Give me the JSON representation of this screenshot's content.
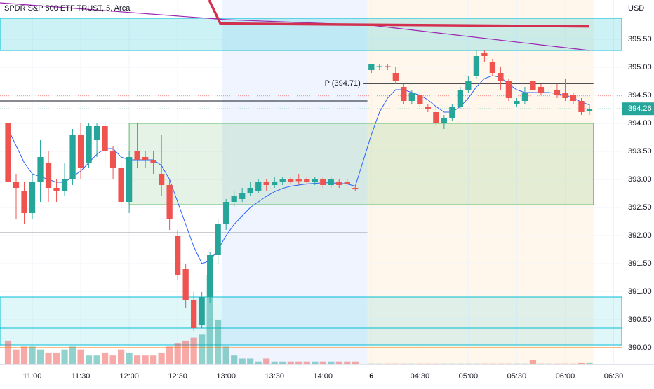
{
  "chart_data": {
    "type": "candlestick",
    "title": "SPDR S&P 500 ETF TRUST, 5, Arca",
    "currency": "USD",
    "xlim": [
      0,
      77
    ],
    "ylim": [
      389.7,
      396.2
    ],
    "xticks": [
      {
        "value": 4,
        "label": "11:00"
      },
      {
        "value": 10,
        "label": "11:30"
      },
      {
        "value": 16,
        "label": "12:00"
      },
      {
        "value": 22,
        "label": "12:30"
      },
      {
        "value": 28,
        "label": "13:00"
      },
      {
        "value": 34,
        "label": "13:30"
      },
      {
        "value": 40,
        "label": "14:00"
      },
      {
        "value": 46,
        "label": "6"
      },
      {
        "value": 52,
        "label": "04:30"
      },
      {
        "value": 58,
        "label": "05:00"
      },
      {
        "value": 64,
        "label": "05:30"
      },
      {
        "value": 70,
        "label": "06:00"
      },
      {
        "value": 76,
        "label": "06:30"
      }
    ],
    "yticks": [
      {
        "value": 390,
        "label": "390.00"
      },
      {
        "value": 390.5,
        "label": "390.50"
      },
      {
        "value": 391,
        "label": "391.00"
      },
      {
        "value": 391.5,
        "label": "391.50"
      },
      {
        "value": 392,
        "label": "392.00"
      },
      {
        "value": 392.5,
        "label": "392.50"
      },
      {
        "value": 393,
        "label": "393.00"
      },
      {
        "value": 393.5,
        "label": "393.50"
      },
      {
        "value": 394,
        "label": "394.00"
      },
      {
        "value": 394.5,
        "label": "394.50"
      },
      {
        "value": 395,
        "label": "395.00"
      },
      {
        "value": 395.5,
        "label": "395.50"
      }
    ],
    "grid": true,
    "up_color": "#26a69a",
    "down_color": "#ef5350",
    "x": [
      1,
      2,
      3,
      4,
      5,
      6,
      7,
      8,
      9,
      10,
      11,
      12,
      13,
      14,
      15,
      16,
      17,
      18,
      19,
      20,
      21,
      22,
      23,
      24,
      25,
      26,
      27,
      28,
      29,
      30,
      31,
      32,
      33,
      34,
      35,
      36,
      37,
      38,
      39,
      40,
      41,
      42,
      43,
      44,
      46,
      47,
      48,
      49,
      50,
      51,
      52,
      53,
      54,
      55,
      56,
      57,
      58,
      59,
      60,
      61,
      62,
      63,
      64,
      65,
      66,
      67,
      68,
      69,
      70,
      71,
      72,
      73
    ],
    "open": [
      394.0,
      392.95,
      392.8,
      392.4,
      392.95,
      393.3,
      392.85,
      392.8,
      393.0,
      393.8,
      393.3,
      393.7,
      393.95,
      393.5,
      393.2,
      392.6,
      393.5,
      393.4,
      393.35,
      393.1,
      392.9,
      392.0,
      391.4,
      390.85,
      390.4,
      390.9,
      391.65,
      392.2,
      392.6,
      392.65,
      392.75,
      392.8,
      392.95,
      392.9,
      392.95,
      393.0,
      393.0,
      393.0,
      392.95,
      393.0,
      392.9,
      392.95,
      392.95,
      392.85,
      394.95,
      395.0,
      395.02,
      394.9,
      394.65,
      394.4,
      394.5,
      394.3,
      394.2,
      394.0,
      394.1,
      394.3,
      394.6,
      394.85,
      395.25,
      395.1,
      394.9,
      394.75,
      394.35,
      394.4,
      394.75,
      394.65,
      394.6,
      394.6,
      394.55,
      394.5,
      394.4,
      394.22
    ],
    "high": [
      394.4,
      393.1,
      392.95,
      393.1,
      393.7,
      393.5,
      393.0,
      393.3,
      393.9,
      394.0,
      394.0,
      394.0,
      394.05,
      393.6,
      393.3,
      393.5,
      394.0,
      393.5,
      393.5,
      393.8,
      393.0,
      392.1,
      391.5,
      391.0,
      391.0,
      391.7,
      392.3,
      392.65,
      392.8,
      392.85,
      392.95,
      393.0,
      393.0,
      393.05,
      393.05,
      393.05,
      393.1,
      393.05,
      393.05,
      393.05,
      393.05,
      393.0,
      393.0,
      392.9,
      395.05,
      395.05,
      395.05,
      395.0,
      394.7,
      394.6,
      394.55,
      394.35,
      394.3,
      394.15,
      394.35,
      394.65,
      394.85,
      395.3,
      395.3,
      395.15,
      395.0,
      394.8,
      394.45,
      394.65,
      394.8,
      394.7,
      394.65,
      394.7,
      394.8,
      394.55,
      394.45,
      394.35
    ],
    "low": [
      392.8,
      392.3,
      392.2,
      392.3,
      392.6,
      392.6,
      392.6,
      392.7,
      392.9,
      393.0,
      393.2,
      393.4,
      393.3,
      393.0,
      392.5,
      392.4,
      393.2,
      393.2,
      393.1,
      392.7,
      392.1,
      391.2,
      390.7,
      390.3,
      390.35,
      390.8,
      391.5,
      392.1,
      392.5,
      392.6,
      392.7,
      392.75,
      392.8,
      392.85,
      392.9,
      392.9,
      392.9,
      392.9,
      392.9,
      392.85,
      392.85,
      392.85,
      392.9,
      392.8,
      394.9,
      394.95,
      394.95,
      394.7,
      394.35,
      394.35,
      394.3,
      394.2,
      393.95,
      393.9,
      394.05,
      394.25,
      394.55,
      394.8,
      395.1,
      394.85,
      394.6,
      394.4,
      394.3,
      394.35,
      394.55,
      394.5,
      394.55,
      394.45,
      394.4,
      394.35,
      394.15,
      394.15
    ],
    "close": [
      392.95,
      392.85,
      392.4,
      392.95,
      393.4,
      392.85,
      392.8,
      393.0,
      393.8,
      393.2,
      393.95,
      393.95,
      393.5,
      393.2,
      392.6,
      393.4,
      393.35,
      393.35,
      393.3,
      392.9,
      392.3,
      391.3,
      390.85,
      390.35,
      390.9,
      391.65,
      392.2,
      392.6,
      392.7,
      392.75,
      392.85,
      392.95,
      392.9,
      392.95,
      393.0,
      392.95,
      392.97,
      392.95,
      393.0,
      392.9,
      393.0,
      392.9,
      392.92,
      392.83,
      395.05,
      395.02,
      395.0,
      394.75,
      394.4,
      394.55,
      394.35,
      394.25,
      394.0,
      394.1,
      394.3,
      394.6,
      394.75,
      395.2,
      395.2,
      394.9,
      394.75,
      394.45,
      394.4,
      394.55,
      394.6,
      394.55,
      394.6,
      394.5,
      394.45,
      394.4,
      394.2,
      394.26
    ],
    "volume": [
      8,
      5,
      6,
      6,
      5,
      4,
      4,
      5,
      6,
      5,
      3,
      3,
      4,
      3,
      5,
      4,
      3,
      3,
      3,
      4,
      6,
      7,
      8,
      9,
      10,
      30,
      15,
      6,
      3,
      2,
      2,
      1,
      2,
      1,
      1,
      1,
      1,
      1,
      1,
      1,
      1,
      1,
      1,
      1,
      0.3,
      0.3,
      0.3,
      0.3,
      0.3,
      0.3,
      0.3,
      0.3,
      0.3,
      0.3,
      0.3,
      0.3,
      0.3,
      0.3,
      0.3,
      0.3,
      0.3,
      0.3,
      0.3,
      0.3,
      1.5,
      0.3,
      0.3,
      0.3,
      0.3,
      0.3,
      0.5,
      0.5
    ],
    "volume_max": 30,
    "ma": [
      393.9,
      393.6,
      393.3,
      393.1,
      393.05,
      393.0,
      392.95,
      392.95,
      393.05,
      393.15,
      393.3,
      393.45,
      393.55,
      393.55,
      393.4,
      393.35,
      393.35,
      393.35,
      393.35,
      393.25,
      393.0,
      392.6,
      392.2,
      391.8,
      391.5,
      391.55,
      391.75,
      392.0,
      392.2,
      392.35,
      392.5,
      392.6,
      392.7,
      392.78,
      392.84,
      392.88,
      392.9,
      392.92,
      392.93,
      392.94,
      392.94,
      392.93,
      392.92,
      392.88,
      393.8,
      394.2,
      394.45,
      394.6,
      394.6,
      394.55,
      394.5,
      394.42,
      394.3,
      394.2,
      394.2,
      394.3,
      394.45,
      394.65,
      394.8,
      394.85,
      394.82,
      394.7,
      394.6,
      394.55,
      394.55,
      394.55,
      394.55,
      394.53,
      394.5,
      394.45,
      394.38,
      394.33
    ],
    "ma_color": "#2962ff",
    "lines": [
      {
        "color": "#9c27b0",
        "width": 1.2,
        "x": [
          0,
          28,
          46,
          73
        ],
        "values": [
          396.15,
          395.85,
          395.75,
          395.3
        ]
      },
      {
        "color": "#d32f4f",
        "width": 3.5,
        "x": [
          25.9,
          27.3,
          73
        ],
        "values": [
          396.2,
          395.78,
          395.73
        ]
      }
    ],
    "sessions": [
      {
        "x": [
          27.5,
          45.5
        ],
        "color": "rgba(41,98,255,0.07)"
      },
      {
        "x": [
          45.5,
          73.5
        ],
        "color": "rgba(255,152,0,0.08)"
      }
    ],
    "zones": [
      {
        "from": 395.3,
        "to": 395.875,
        "x": [
          0,
          77
        ],
        "color": "rgba(0,188,212,0.2)",
        "border": "#00bcd4"
      },
      {
        "from": 390.35,
        "to": 390.9,
        "x": [
          0,
          77
        ],
        "color": "rgba(0,188,212,0.12)",
        "border": "#00bcd4"
      },
      {
        "from": 390.05,
        "to": 390.35,
        "x": [
          0,
          77
        ],
        "color": "rgba(0,188,212,0.12)",
        "border": "#00bcd4"
      },
      {
        "from": 392.55,
        "to": 394.0,
        "x": [
          16,
          73.5
        ],
        "color": "rgba(76,175,80,0.15)",
        "border": "#66bb6a"
      }
    ],
    "levels": [
      {
        "value": 394.71,
        "label": "P (394.71)",
        "color": "#131722",
        "x": [
          45,
          73.5
        ],
        "dash": false
      },
      {
        "value": 394.4,
        "color": "#131722",
        "x": [
          0,
          45.5
        ],
        "dash": false
      },
      {
        "value": 392.05,
        "color": "#9598a1",
        "x": [
          0,
          45.5
        ],
        "dash": false
      },
      {
        "value": 390.0,
        "color": "#f57c00",
        "x": [
          0,
          77
        ],
        "dash": false
      },
      {
        "value": 394.47,
        "color": "#ef5350",
        "x": [
          0,
          77
        ],
        "dash": true
      },
      {
        "value": 394.5,
        "color": "#ef5350",
        "x": [
          0,
          77
        ],
        "dash": true
      },
      {
        "value": 394.26,
        "color": "#26a69a",
        "x": [
          0,
          77
        ],
        "dash": true
      }
    ],
    "last_price": 394.26
  }
}
